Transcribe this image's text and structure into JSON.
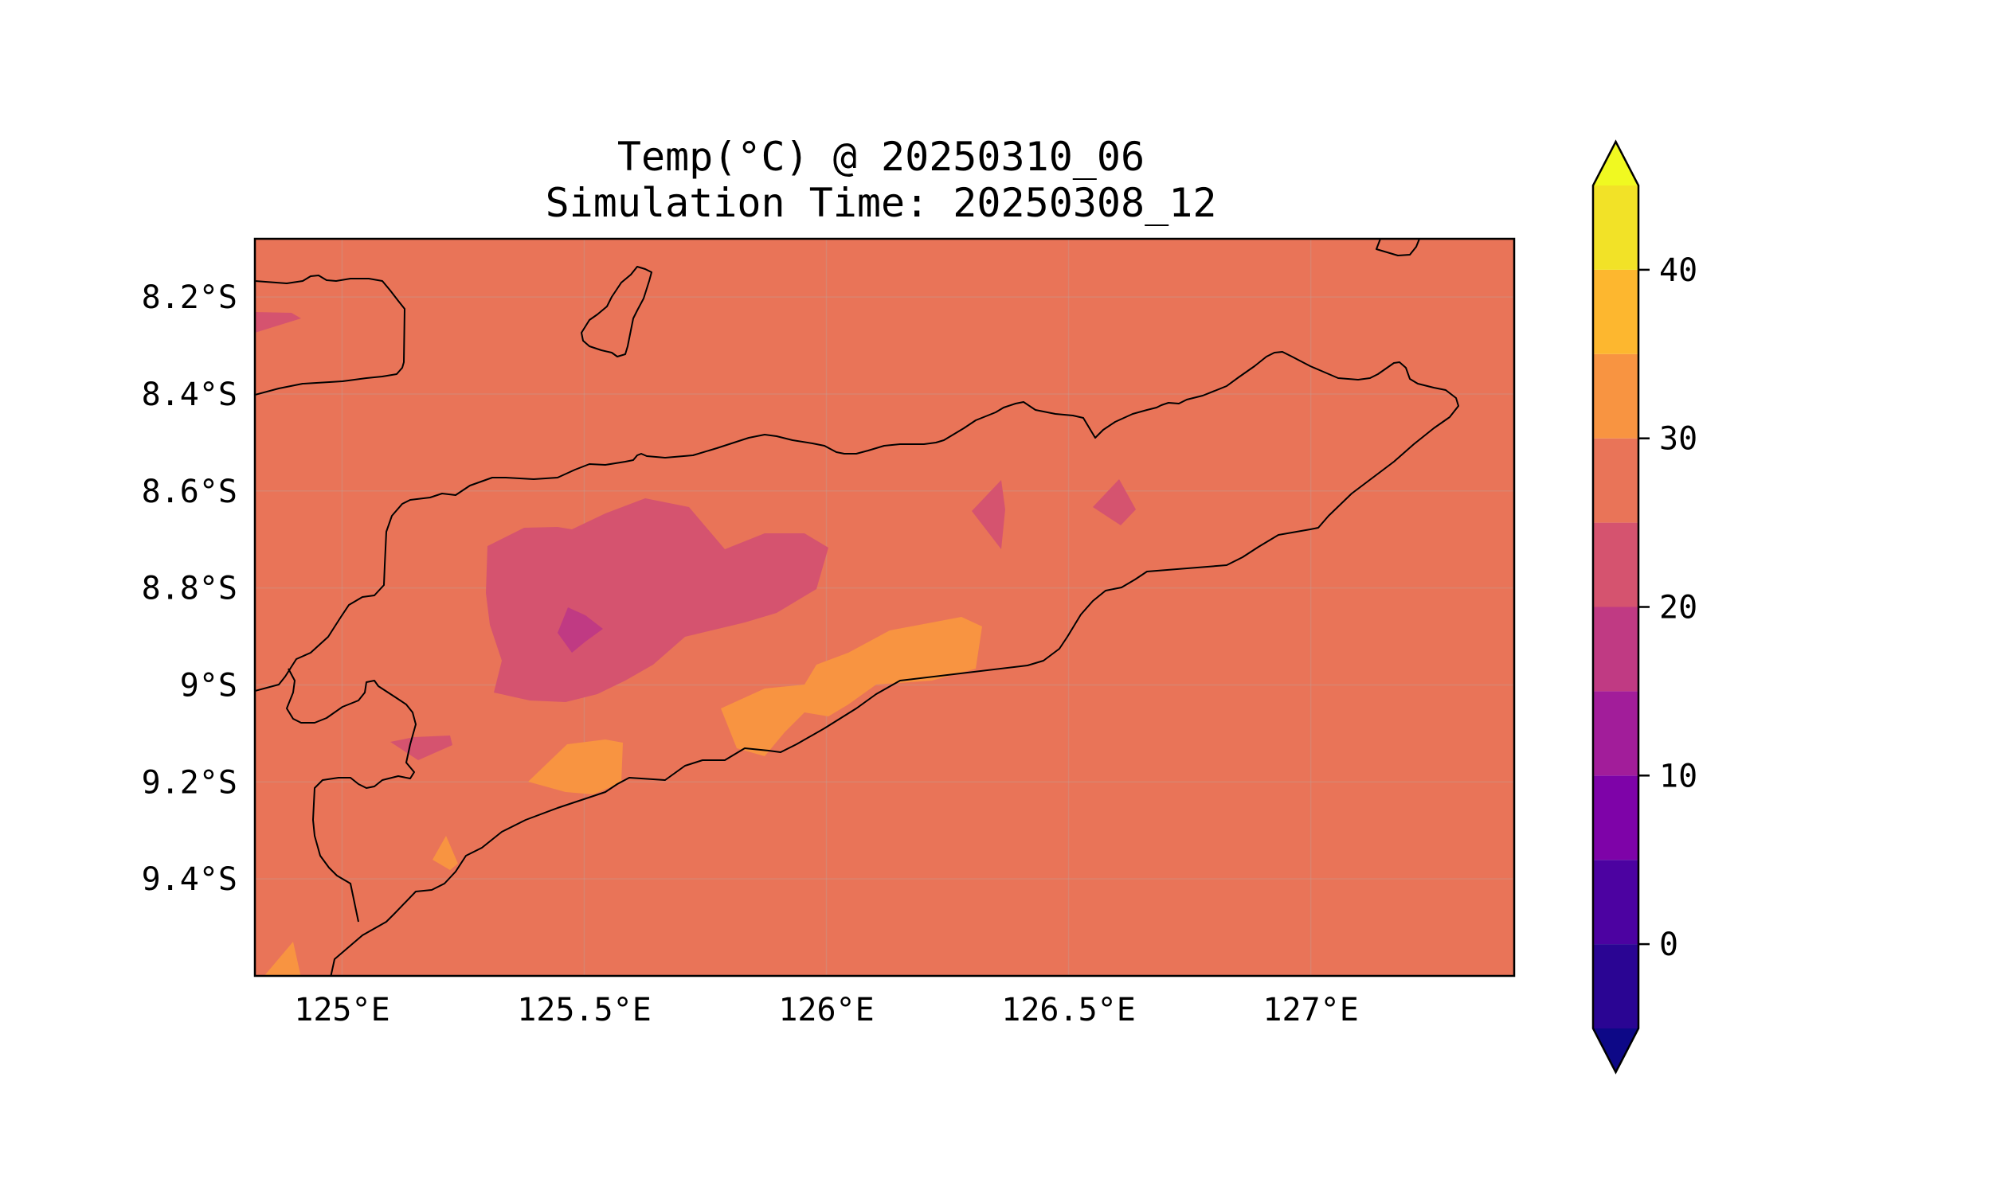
{
  "title": "Temp(°C) @ 20250310_06",
  "subtitle": "Simulation Time: 20250308_12",
  "map": {
    "region": "Timor",
    "lon_range": [
      124.82,
      127.42
    ],
    "lat_range": [
      -9.6,
      -8.08
    ],
    "x_ticks": [
      {
        "value": 125.0,
        "label": "125°E"
      },
      {
        "value": 125.5,
        "label": "125.5°E"
      },
      {
        "value": 126.0,
        "label": "126°E"
      },
      {
        "value": 126.5,
        "label": "126.5°E"
      },
      {
        "value": 127.0,
        "label": "127°E"
      }
    ],
    "y_ticks": [
      {
        "value": -8.2,
        "label": "8.2°S"
      },
      {
        "value": -8.4,
        "label": "8.4°S"
      },
      {
        "value": -8.6,
        "label": "8.6°S"
      },
      {
        "value": -8.8,
        "label": "8.8°S"
      },
      {
        "value": -9.0,
        "label": "9°S"
      },
      {
        "value": -9.2,
        "label": "9.2°S"
      },
      {
        "value": -9.4,
        "label": "9.4°S"
      }
    ],
    "gridlines": true,
    "background_color": "#e97458"
  },
  "colorbar": {
    "label_ticks": [
      {
        "value": 0,
        "label": "0"
      },
      {
        "value": 10,
        "label": "10"
      },
      {
        "value": 20,
        "label": "20"
      },
      {
        "value": 30,
        "label": "30"
      },
      {
        "value": 40,
        "label": "40"
      }
    ],
    "levels": [
      -5,
      0,
      5,
      10,
      15,
      20,
      25,
      30,
      35,
      40,
      45
    ],
    "extend": "both",
    "colormap": "plasma",
    "colors": [
      "#0d0887",
      "#2a0593",
      "#4c02a1",
      "#7e03a8",
      "#a21d9a",
      "#c03a83",
      "#d5536f",
      "#e97458",
      "#f89441",
      "#fdb72f",
      "#f2e227",
      "#f0f921"
    ]
  }
}
